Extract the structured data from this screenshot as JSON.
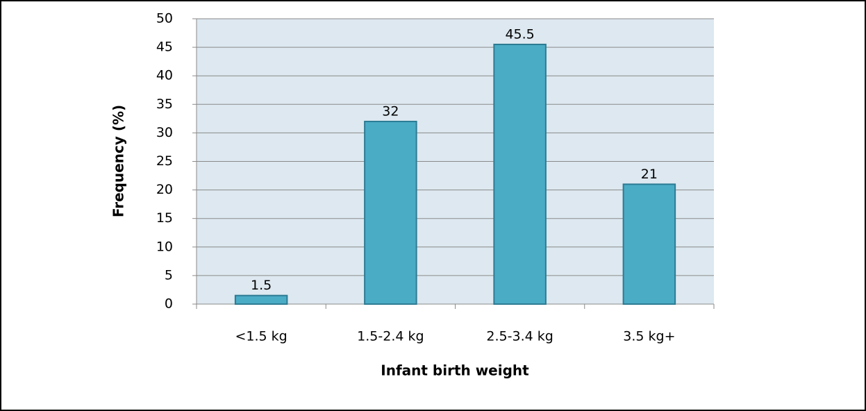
{
  "chart_data": {
    "type": "bar",
    "x_label": "Infant birth weight",
    "y_label": "Frequency (%)",
    "categories": [
      "<1.5 kg",
      "1.5-2.4 kg",
      "2.5-3.4 kg",
      "3.5 kg+"
    ],
    "values": [
      1.5,
      32,
      45.5,
      21
    ],
    "color": "#4bacc6",
    "ylim": [
      0,
      50
    ],
    "yticks": [
      0,
      5,
      10,
      15,
      20,
      25,
      30,
      35,
      40,
      45,
      50
    ],
    "grid": true
  }
}
